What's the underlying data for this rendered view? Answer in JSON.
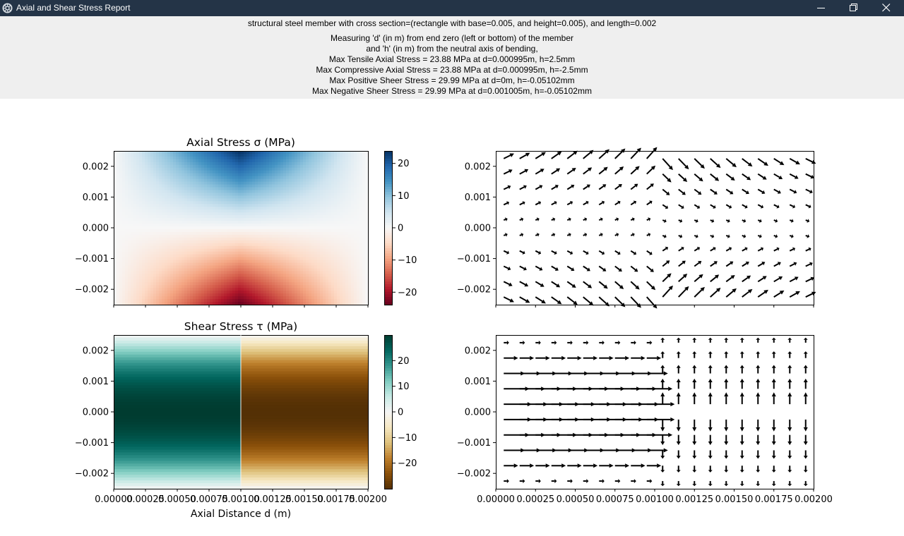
{
  "window": {
    "title": "Axial and Shear Stress Report",
    "controls": [
      "minimize-icon",
      "restore-icon",
      "close-icon"
    ]
  },
  "report": {
    "header": "structural steel member with cross section=(rectangle with base=0.005, and height=0.005), and length=0.002",
    "lines": [
      "Measuring 'd' (in m) from end zero (left or bottom) of the member",
      "and 'h' (in m) from the neutral axis of bending,",
      "Max Tensile Axial Stress = 23.88 MPa at d=0.000995m, h=2.5mm",
      "Max Compressive Axial Stress = 23.88 MPa at d=0.000995m, h=-2.5mm",
      "Max Positive Sheer Stress = 29.99 MPa at d=0m, h=-0.05102mm",
      "Max Negative Sheer Stress = 29.99 MPa at d=0.001005m, h=-0.05102mm"
    ]
  },
  "chart_data": [
    {
      "type": "heatmap",
      "title": "Axial Stress σ (MPa)",
      "xlabel": "",
      "ylabel": "",
      "xlim": [
        0,
        0.002
      ],
      "ylim": [
        -0.0025,
        0.0025
      ],
      "yticks": [
        "0.002",
        "0.001",
        "0.000",
        "−0.001",
        "−0.002"
      ],
      "ytick_values": [
        0.002,
        0.001,
        0,
        -0.001,
        -0.002
      ],
      "colormap": "RdBu",
      "colorbar": {
        "range": [
          -23.88,
          23.88
        ],
        "ticks": [
          "20",
          "10",
          "0",
          "−10",
          "−20"
        ],
        "tick_values": [
          20,
          10,
          0,
          -10,
          -20
        ]
      },
      "peak": {
        "d": 0.000995,
        "value": 23.88
      }
    },
    {
      "type": "quiver",
      "title": "",
      "xlim": [
        0,
        0.002
      ],
      "ylim": [
        -0.0025,
        0.0025
      ],
      "yticks": [
        "0.002",
        "0.001",
        "0.000",
        "−0.001",
        "−0.002"
      ],
      "ytick_values": [
        0.002,
        0.001,
        0,
        -0.001,
        -0.002
      ],
      "field": "principal-axial"
    },
    {
      "type": "heatmap",
      "title": "Shear Stress τ (MPa)",
      "xlabel": "Axial Distance d (m)",
      "xlim": [
        0,
        0.002
      ],
      "ylim": [
        -0.0025,
        0.0025
      ],
      "xticks": [
        "0.00000",
        "0.00025",
        "0.00050",
        "0.00075",
        "0.00100",
        "0.00125",
        "0.00150",
        "0.00175",
        "0.00200"
      ],
      "xtick_values": [
        0,
        0.00025,
        0.0005,
        0.00075,
        0.001,
        0.00125,
        0.0015,
        0.00175,
        0.002
      ],
      "yticks": [
        "0.002",
        "0.001",
        "0.000",
        "−0.001",
        "−0.002"
      ],
      "ytick_values": [
        0.002,
        0.001,
        0,
        -0.001,
        -0.002
      ],
      "colormap": "BrBG",
      "colorbar": {
        "range": [
          -29.99,
          29.99
        ],
        "ticks": [
          "20",
          "10",
          "0",
          "−10",
          "−20"
        ],
        "tick_values": [
          20,
          10,
          0,
          -10,
          -20
        ]
      },
      "split_d": 0.001
    },
    {
      "type": "quiver",
      "title": "",
      "xlim": [
        0,
        0.002
      ],
      "ylim": [
        -0.0025,
        0.0025
      ],
      "xticks": [
        "0.00000",
        "0.00025",
        "0.00050",
        "0.00075",
        "0.00100",
        "0.00125",
        "0.00150",
        "0.00175",
        "0.00200"
      ],
      "xtick_values": [
        0,
        0.00025,
        0.0005,
        0.00075,
        0.001,
        0.00125,
        0.0015,
        0.00175,
        0.002
      ],
      "yticks": [
        "0.002",
        "0.001",
        "0.000",
        "−0.001",
        "−0.002"
      ],
      "ytick_values": [
        0.002,
        0.001,
        0,
        -0.001,
        -0.002
      ],
      "field": "shear-flow"
    }
  ]
}
